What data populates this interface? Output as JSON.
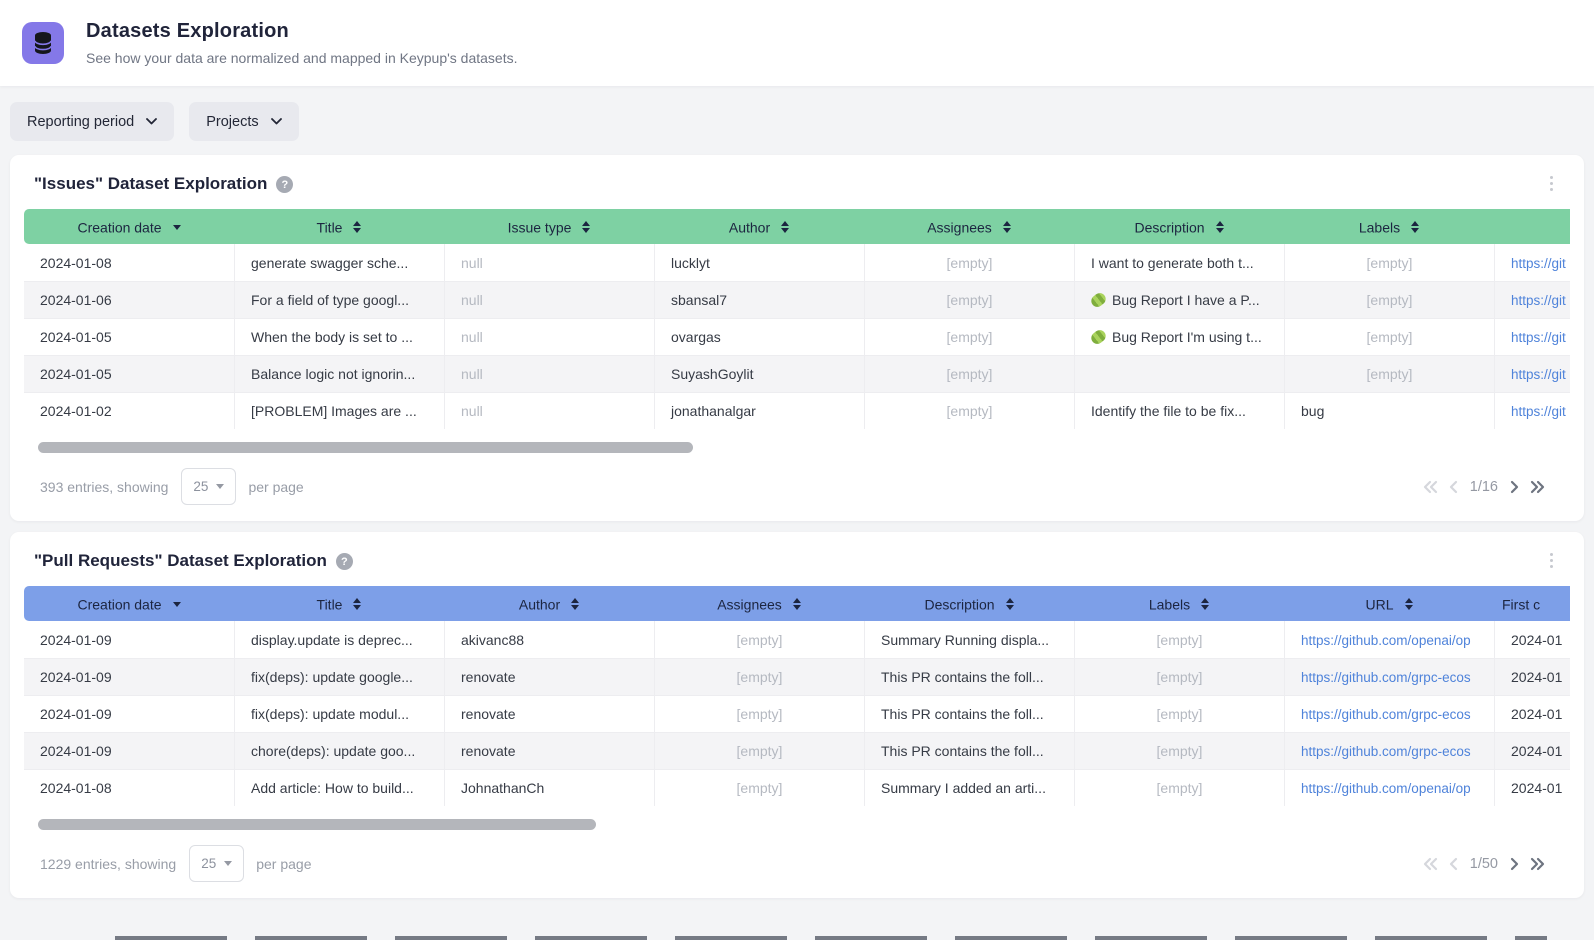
{
  "page": {
    "title": "Datasets Exploration",
    "subtitle": "See how your data are normalized and mapped in Keypup's datasets."
  },
  "filters": [
    {
      "label": "Reporting period"
    },
    {
      "label": "Projects"
    }
  ],
  "colors": {
    "accent_purple": "#8478e8",
    "issues_header": "#7ed1a3",
    "pull_requests_header": "#7d9fe8",
    "link_blue": "#4f83da",
    "page_background": "#f3f4f6"
  },
  "icons": {
    "app": "database-icon",
    "filter_caret": "chevron-down-icon",
    "help": "help-icon",
    "help_glyph": "?",
    "card_menu": "kebab-menu-icon",
    "sort_descending": "sort-desc-icon",
    "sort_both": "sort-icon",
    "description_bug": "bug-emoji-icon",
    "pagination": [
      "first-page-icon",
      "previous-page-icon",
      "next-page-icon",
      "last-page-icon"
    ]
  },
  "issues": {
    "title": "\"Issues\" Dataset Exploration",
    "columns": [
      {
        "label": "Creation date",
        "sort": "desc"
      },
      {
        "label": "Title",
        "sort": "both"
      },
      {
        "label": "Issue type",
        "sort": "both"
      },
      {
        "label": "Author",
        "sort": "both"
      },
      {
        "label": "Assignees",
        "sort": "both"
      },
      {
        "label": "Description",
        "sort": "both"
      },
      {
        "label": "Labels",
        "sort": "both"
      },
      {
        "label": "",
        "sort": null
      }
    ],
    "rows": [
      [
        "2024-01-08",
        "generate swagger sche...",
        "null",
        "lucklyt",
        "[empty]",
        "I want to generate both t...",
        "[empty]",
        "https://git"
      ],
      [
        "2024-01-06",
        "For a field of type googl...",
        "null",
        "sbansal7",
        "[empty]",
        "🐛 Bug Report I have a P...",
        "[empty]",
        "https://git"
      ],
      [
        "2024-01-05",
        "When the body is set to ...",
        "null",
        "ovargas",
        "[empty]",
        "🐛 Bug Report I'm using t...",
        "[empty]",
        "https://git"
      ],
      [
        "2024-01-05",
        "Balance logic not ignorin...",
        "null",
        "SuyashGoylit",
        "[empty]",
        "",
        "[empty]",
        "https://git"
      ],
      [
        "2024-01-02",
        "[PROBLEM] Images are ...",
        "null",
        "jonathanalgar",
        "[empty]",
        "Identify the file to be fix...",
        "bug",
        "https://git"
      ]
    ],
    "footer": {
      "entries_text": "393 entries, showing",
      "per_page": "25",
      "per_page_suffix": "per page",
      "page_indicator": "1/16"
    }
  },
  "pull_requests": {
    "title": "\"Pull Requests\" Dataset Exploration",
    "columns": [
      {
        "label": "Creation date",
        "sort": "desc"
      },
      {
        "label": "Title",
        "sort": "both"
      },
      {
        "label": "Author",
        "sort": "both"
      },
      {
        "label": "Assignees",
        "sort": "both"
      },
      {
        "label": "Description",
        "sort": "both"
      },
      {
        "label": "Labels",
        "sort": "both"
      },
      {
        "label": "URL",
        "sort": "both"
      },
      {
        "label": "First c",
        "sort": null
      }
    ],
    "rows": [
      [
        "2024-01-09",
        "display.update is deprec...",
        "akivanc88",
        "[empty]",
        "Summary Running displa...",
        "[empty]",
        "https://github.com/openai/op",
        "2024-01"
      ],
      [
        "2024-01-09",
        "fix(deps): update google...",
        "renovate",
        "[empty]",
        "This PR contains the foll...",
        "[empty]",
        "https://github.com/grpc-ecos",
        "2024-01"
      ],
      [
        "2024-01-09",
        "fix(deps): update modul...",
        "renovate",
        "[empty]",
        "This PR contains the foll...",
        "[empty]",
        "https://github.com/grpc-ecos",
        "2024-01"
      ],
      [
        "2024-01-09",
        "chore(deps): update goo...",
        "renovate",
        "[empty]",
        "This PR contains the foll...",
        "[empty]",
        "https://github.com/grpc-ecos",
        "2024-01"
      ],
      [
        "2024-01-08",
        "Add article: How to build...",
        "JohnathanCh",
        "[empty]",
        "Summary I added an arti...",
        "[empty]",
        "https://github.com/openai/op",
        "2024-01"
      ]
    ],
    "footer": {
      "entries_text": "1229 entries, showing",
      "per_page": "25",
      "per_page_suffix": "per page",
      "page_indicator": "1/50"
    }
  }
}
